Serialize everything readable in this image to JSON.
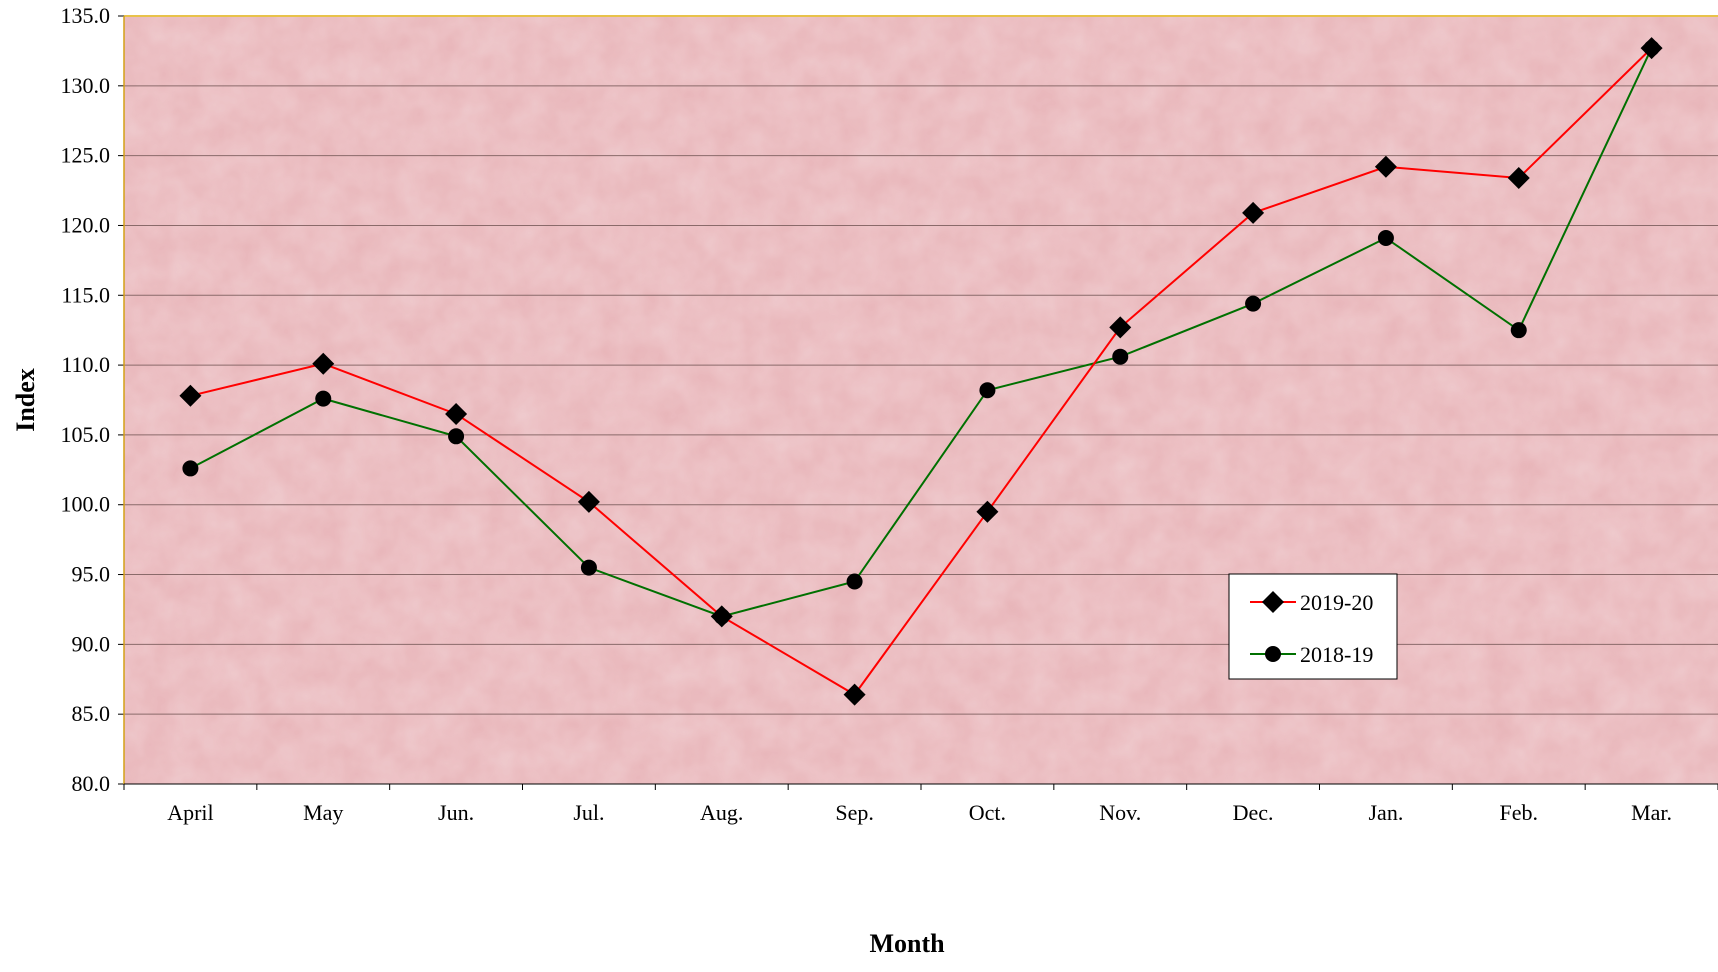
{
  "chart_data": {
    "type": "line",
    "title": "",
    "xlabel": "Month",
    "ylabel": "Index",
    "categories": [
      "April",
      "May",
      "Jun.",
      "Jul.",
      "Aug.",
      "Sep.",
      "Oct.",
      "Nov.",
      "Dec.",
      "Jan.",
      "Feb.",
      "Mar."
    ],
    "ylim": [
      80.0,
      135.0
    ],
    "ytick_step": 5,
    "ytick_labels": [
      "80.0",
      "85.0",
      "90.0",
      "95.0",
      "100.0",
      "105.0",
      "110.0",
      "115.0",
      "120.0",
      "125.0",
      "130.0",
      "135.0"
    ],
    "grid": true,
    "legend_position": "bottom-right",
    "plot_background": "#e8b4b8",
    "series": [
      {
        "name": "2019-20",
        "color": "#ff0000",
        "marker": "diamond",
        "values": [
          107.8,
          110.1,
          106.5,
          100.2,
          92.0,
          86.4,
          99.5,
          112.7,
          120.9,
          124.2,
          123.4,
          132.7
        ]
      },
      {
        "name": "2018-19",
        "color": "#007000",
        "marker": "circle",
        "values": [
          102.6,
          107.6,
          104.9,
          95.5,
          92.0,
          94.5,
          108.2,
          110.6,
          114.4,
          119.1,
          112.5,
          132.7
        ]
      }
    ]
  }
}
